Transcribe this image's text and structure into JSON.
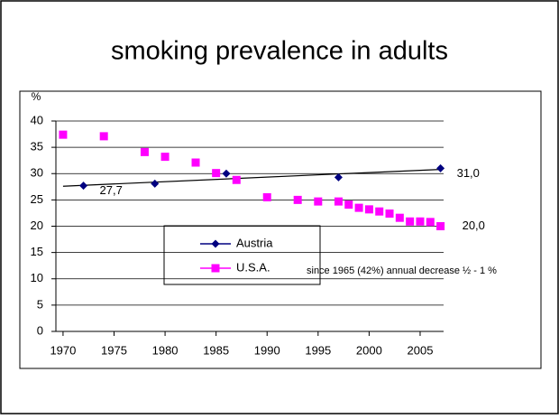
{
  "chart_data": {
    "type": "line",
    "title": "smoking prevalence in adults",
    "y_label": "%",
    "annotation": "since 1965 (42%) annual decrease ½ - 1 %",
    "xlim": [
      1969.3,
      2007.3
    ],
    "xticks": [
      1970,
      1975,
      1980,
      1985,
      1990,
      1995,
      2000,
      2005
    ],
    "ylim": [
      0,
      40
    ],
    "yticks": [
      0,
      5,
      10,
      15,
      20,
      25,
      30,
      35,
      40
    ],
    "grid": true,
    "series": [
      {
        "name": "Austria",
        "color": "#000080",
        "marker": "diamond",
        "x": [
          1972,
          1979,
          1986,
          1997,
          2007
        ],
        "values": [
          27.7,
          28.1,
          30.0,
          29.3,
          31.0
        ],
        "value_labels": [
          "27,7",
          null,
          null,
          null,
          "31,0"
        ]
      },
      {
        "name": "U.S.A.",
        "color": "#ff00ff",
        "marker": "square",
        "x": [
          1970,
          1974,
          1978,
          1980,
          1983,
          1985,
          1987,
          1990,
          1993,
          1995,
          1997,
          1998,
          1999,
          2000,
          2001,
          2002,
          2003,
          2004,
          2005,
          2006,
          2007
        ],
        "values": [
          37.4,
          37.1,
          34.1,
          33.2,
          32.1,
          30.1,
          28.8,
          25.5,
          25.0,
          24.7,
          24.7,
          24.1,
          23.5,
          23.2,
          22.8,
          22.4,
          21.6,
          20.9,
          20.9,
          20.8,
          20.0
        ],
        "value_labels": [
          null,
          null,
          null,
          null,
          null,
          null,
          null,
          null,
          null,
          null,
          null,
          null,
          null,
          null,
          null,
          null,
          null,
          null,
          null,
          null,
          "20,0"
        ]
      }
    ],
    "trendline": {
      "x": [
        1970,
        2007
      ],
      "values": [
        27.6,
        30.8
      ],
      "color": "#000000"
    }
  }
}
